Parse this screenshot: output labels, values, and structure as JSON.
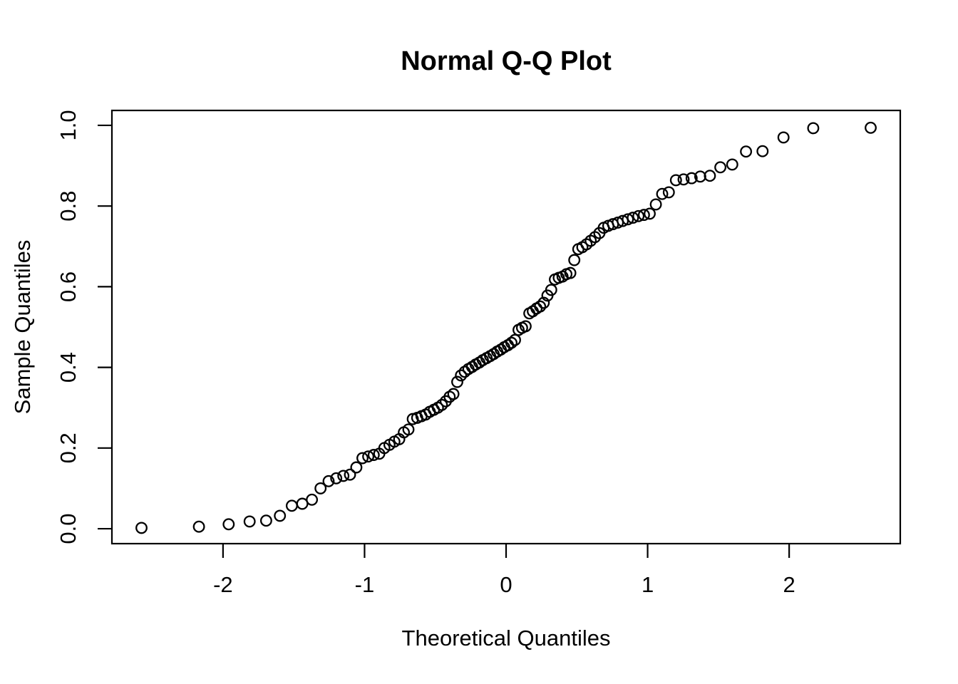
{
  "figure": {
    "background_color": "#ffffff",
    "foreground_color": "#000000"
  },
  "chart_data": {
    "type": "scatter",
    "title": "Normal Q-Q Plot",
    "xlabel": "Theoretical Quantiles",
    "ylabel": "Sample Quantiles",
    "marker": "open-circle",
    "marker_color": "#000000",
    "grid": false,
    "legend": false,
    "n_points": 100,
    "xlim": [
      -2.785,
      2.785
    ],
    "ylim": [
      -0.037,
      1.037
    ],
    "x_tick_values": [
      -2,
      -1,
      0,
      1,
      2
    ],
    "x_tick_labels": [
      "-2",
      "-1",
      "0",
      "1",
      "2"
    ],
    "y_tick_values": [
      0.0,
      0.2,
      0.4,
      0.6,
      0.8,
      1.0
    ],
    "y_tick_labels": [
      "0.0",
      "0.2",
      "0.4",
      "0.6",
      "0.8",
      "1.0"
    ],
    "series": [
      {
        "name": "qq-points",
        "x": [
          -2.576,
          -2.17,
          -1.96,
          -1.812,
          -1.695,
          -1.598,
          -1.514,
          -1.44,
          -1.372,
          -1.311,
          -1.254,
          -1.2,
          -1.15,
          -1.103,
          -1.058,
          -1.015,
          -0.974,
          -0.935,
          -0.896,
          -0.86,
          -0.824,
          -0.789,
          -0.755,
          -0.722,
          -0.69,
          -0.659,
          -0.628,
          -0.598,
          -0.568,
          -0.539,
          -0.51,
          -0.482,
          -0.454,
          -0.426,
          -0.399,
          -0.372,
          -0.345,
          -0.319,
          -0.292,
          -0.266,
          -0.24,
          -0.215,
          -0.189,
          -0.164,
          -0.138,
          -0.113,
          -0.088,
          -0.063,
          -0.038,
          -0.013,
          0.013,
          0.038,
          0.063,
          0.088,
          0.113,
          0.138,
          0.164,
          0.189,
          0.215,
          0.24,
          0.266,
          0.292,
          0.319,
          0.345,
          0.372,
          0.399,
          0.426,
          0.454,
          0.482,
          0.51,
          0.539,
          0.568,
          0.598,
          0.628,
          0.659,
          0.69,
          0.722,
          0.755,
          0.789,
          0.824,
          0.86,
          0.896,
          0.935,
          0.974,
          1.015,
          1.058,
          1.103,
          1.15,
          1.2,
          1.254,
          1.311,
          1.372,
          1.44,
          1.514,
          1.598,
          1.695,
          1.812,
          1.96,
          2.17,
          2.576
        ],
        "y": [
          0.002,
          0.005,
          0.011,
          0.018,
          0.02,
          0.032,
          0.057,
          0.062,
          0.072,
          0.1,
          0.118,
          0.125,
          0.131,
          0.134,
          0.152,
          0.175,
          0.179,
          0.183,
          0.186,
          0.2,
          0.208,
          0.216,
          0.222,
          0.239,
          0.246,
          0.272,
          0.275,
          0.279,
          0.283,
          0.29,
          0.295,
          0.3,
          0.307,
          0.316,
          0.327,
          0.334,
          0.364,
          0.38,
          0.389,
          0.396,
          0.401,
          0.407,
          0.412,
          0.418,
          0.423,
          0.428,
          0.433,
          0.439,
          0.444,
          0.45,
          0.455,
          0.461,
          0.468,
          0.493,
          0.498,
          0.502,
          0.534,
          0.539,
          0.546,
          0.551,
          0.56,
          0.578,
          0.592,
          0.618,
          0.622,
          0.625,
          0.631,
          0.634,
          0.666,
          0.693,
          0.698,
          0.705,
          0.714,
          0.723,
          0.733,
          0.746,
          0.751,
          0.755,
          0.759,
          0.763,
          0.767,
          0.771,
          0.775,
          0.778,
          0.781,
          0.804,
          0.83,
          0.834,
          0.864,
          0.866,
          0.869,
          0.873,
          0.875,
          0.896,
          0.903,
          0.935,
          0.936,
          0.97,
          0.993,
          0.994
        ]
      }
    ]
  }
}
